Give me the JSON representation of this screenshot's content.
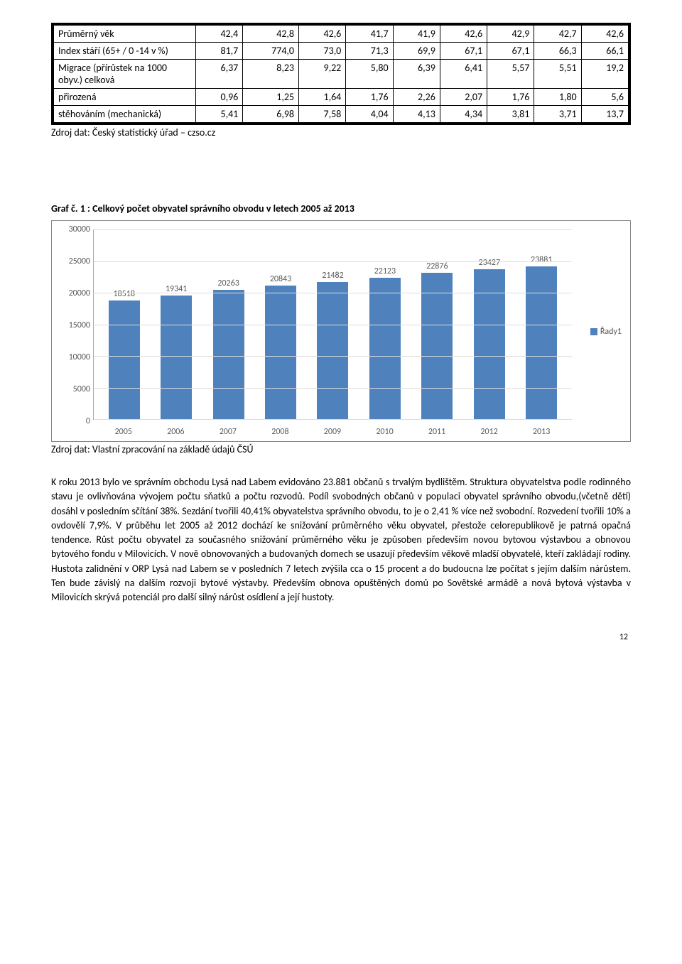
{
  "table": {
    "rows": [
      {
        "label": "Průměrný věk",
        "cells": [
          "42,4",
          "42,8",
          "42,6",
          "41,7",
          "41,9",
          "42,6",
          "42,9",
          "42,7",
          "42,6"
        ]
      },
      {
        "label": "Index stáří (65+ / 0 -14 v %)",
        "cells": [
          "81,7",
          "774,0",
          "73,0",
          "71,3",
          "69,9",
          "67,1",
          "67,1",
          "66,3",
          "66,1"
        ]
      },
      {
        "label": "Migrace (přírůstek na 1000 obyv.) celková",
        "cells": [
          "6,37",
          "8,23",
          "9,22",
          "5,80",
          "6,39",
          "6,41",
          "5,57",
          "5,51",
          "19,2"
        ]
      },
      {
        "label": "přirozená",
        "cells": [
          "0,96",
          "1,25",
          "1,64",
          "1,76",
          "2,26",
          "2,07",
          "1,76",
          "1,80",
          "5,6"
        ]
      },
      {
        "label": "stěhováním (mechanická)",
        "cells": [
          "5,41",
          "6,98",
          "7,58",
          "4,04",
          "4,13",
          "4,34",
          "3,81",
          "3,71",
          "13,7"
        ]
      }
    ],
    "source": "Zdroj dat: Český statistický úřad – czso.cz"
  },
  "chart": {
    "caption": "Graf č. 1 : Celkový počet obyvatel správního obvodu v letech 2005 až 2013",
    "type": "bar",
    "categories": [
      "2005",
      "2006",
      "2007",
      "2008",
      "2009",
      "2010",
      "2011",
      "2012",
      "2013"
    ],
    "values": [
      18518,
      19341,
      20263,
      20843,
      21482,
      22123,
      22876,
      23427,
      23881
    ],
    "bar_color": "#4f81bd",
    "ylim": [
      0,
      30000
    ],
    "ytick_step": 5000,
    "grid_color": "#dddddd",
    "axis_color": "#aaaaaa",
    "label_color": "#595959",
    "legend_label": "Řady1",
    "source": "Zdroj dat: Vlastní zpracování na základě údajů ČSÚ"
  },
  "body_text": "K roku 2013 bylo ve správním obchodu Lysá nad Labem evidováno 23.881 občanů s trvalým bydlištěm. Struktura obyvatelstva podle rodinného stavu je ovlivňována vývojem počtu sňatků a počtu rozvodů. Podíl svobodných občanů v populaci obyvatel správního obvodu,(včetně dětí) dosáhl v posledním sčítání 38%. Sezdání tvořili 40,41% obyvatelstva správního obvodu, to je o 2,41 % více než svobodní. Rozvedení tvořili 10% a ovdovělí 7,9%. V průběhu let 2005 až 2012 dochází ke snižování průměrného věku obyvatel, přestože celorepublikově je patrná opačná tendence. Růst počtu obyvatel za současného snižování průměrného věku je způsoben především novou bytovou výstavbou a obnovou bytového fondu v Milovicích. V nově obnovovaných a budovaných domech se usazují především věkově mladší obyvatelé, kteří zakládají rodiny. Hustota zalidnění v ORP Lysá nad Labem se v posledních 7 letech zvýšila cca o 15 procent a do budoucna lze počítat s jejím dalším nárůstem. Ten bude závislý na dalším rozvoji bytové výstavby. Především obnova opuštěných domů po Sovětské armádě a nová bytová výstavba v Milovicích skrývá potenciál pro další silný nárůst osídlení a její hustoty.",
  "page_number": "12"
}
